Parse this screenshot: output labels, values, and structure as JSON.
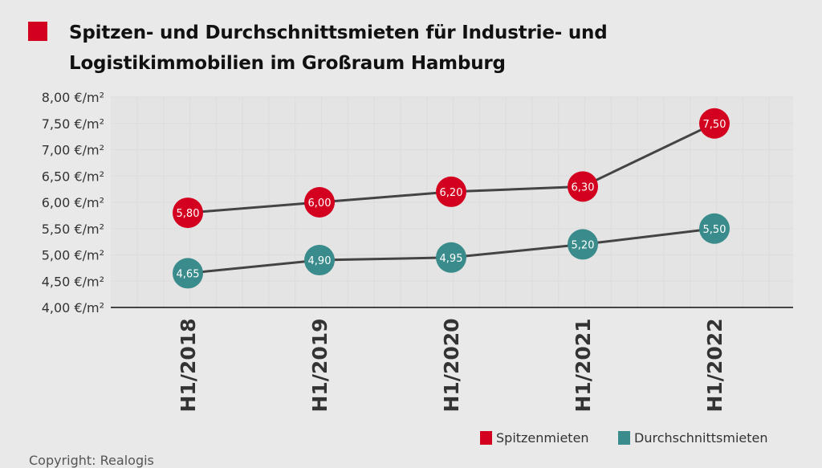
{
  "title_lines": [
    "Spitzen- und Durchschnittsmieten für Industrie- und",
    "Logistikimmobilien im Großraum Hamburg"
  ],
  "copyright": "Copyright: Realogis",
  "colors": {
    "spitzen": "#d3001f",
    "durchschnitt": "#3a8b8b",
    "line": "#444444"
  },
  "chart_data": {
    "type": "line",
    "title": "Spitzen- und Durchschnittsmieten für Industrie- und Logistikimmobilien im Großraum Hamburg",
    "categories": [
      "H1/2018",
      "H1/2019",
      "H1/2020",
      "H1/2021",
      "H1/2022"
    ],
    "series": [
      {
        "name": "Spitzenmieten",
        "values": [
          5.8,
          6.0,
          6.2,
          6.3,
          7.5
        ],
        "labels": [
          "5,80",
          "6,00",
          "6,20",
          "6,30",
          "7,50"
        ]
      },
      {
        "name": "Durchschnittsmieten",
        "values": [
          4.65,
          4.9,
          4.95,
          5.2,
          5.5
        ],
        "labels": [
          "4,65",
          "4,90",
          "4,95",
          "5,20",
          "5,50"
        ]
      }
    ],
    "yticks": [
      4.0,
      4.5,
      5.0,
      5.5,
      6.0,
      6.5,
      7.0,
      7.5,
      8.0
    ],
    "ytick_labels": [
      "4,00 €/m²",
      "4,50 €/m²",
      "5,00 €/m²",
      "5,50 €/m²",
      "6,00 €/m²",
      "6,50 €/m²",
      "7,00 €/m²",
      "7,50 €/m²",
      "8,00 €/m²"
    ],
    "ylim": [
      4.0,
      8.0
    ],
    "grid": true,
    "legend": "bottom-right"
  }
}
